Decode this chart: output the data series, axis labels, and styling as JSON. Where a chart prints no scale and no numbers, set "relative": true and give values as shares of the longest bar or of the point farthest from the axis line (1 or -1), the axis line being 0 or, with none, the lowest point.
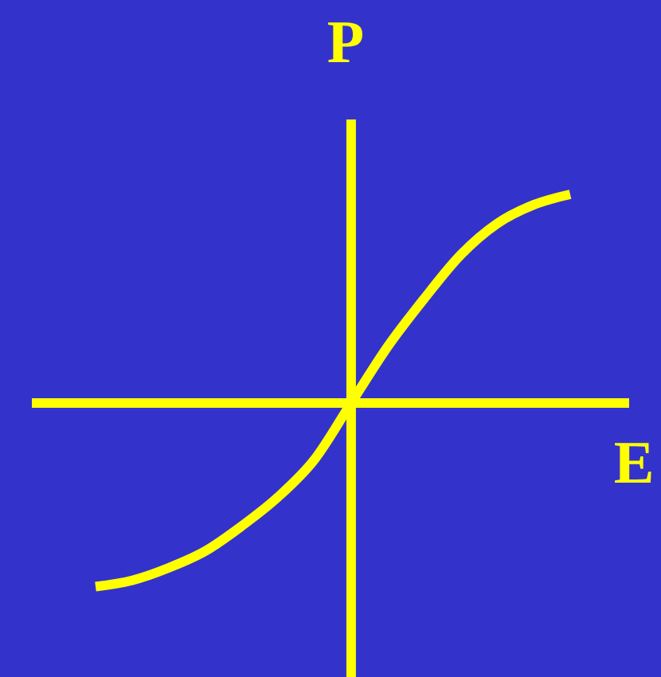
{
  "chart_data": {
    "type": "line",
    "xlabel": "E",
    "ylabel": "P",
    "relative": true,
    "ref_lines": [
      {
        "axis": "y",
        "value": 0
      }
    ],
    "categories": [
      null,
      null,
      null,
      null,
      null,
      null,
      null,
      null,
      null,
      null,
      null,
      null,
      null,
      null
    ],
    "series": [
      {
        "color": "#ffff00",
        "values": [
          -0.88,
          -0.85,
          -0.79,
          -0.71,
          -0.59,
          -0.45,
          -0.27,
          0,
          0.27,
          0.5,
          0.71,
          0.86,
          0.95,
          1.0
        ]
      }
    ]
  }
}
